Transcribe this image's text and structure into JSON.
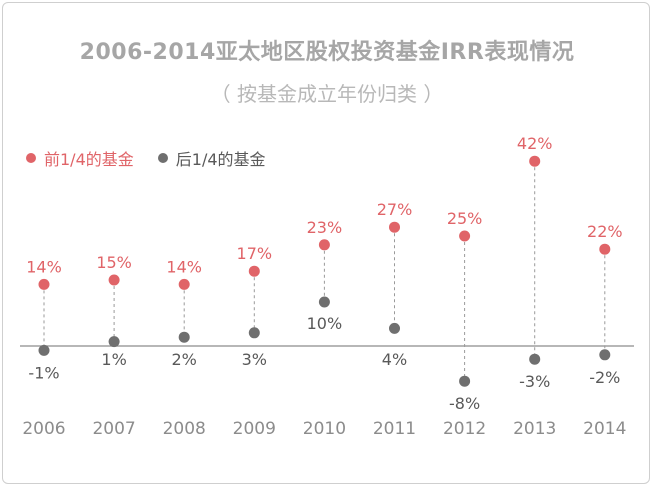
{
  "title": "2006-2014亚太地区股权投资基金IRR表现情况",
  "subtitle": "（ 按基金成立年份归类 ）",
  "colors": {
    "top_quartile": "#e06468",
    "bottom_quartile": "#6f6f6f",
    "connector": "#9a9a9a",
    "axis": "#8c8c8c",
    "tick_label": "#8c8c8c"
  },
  "legend": [
    {
      "label": "前1/4的基金",
      "color": "#e06468"
    },
    {
      "label": "后1/4的基金",
      "color": "#6f6f6f"
    }
  ],
  "chart_data": {
    "type": "scatter",
    "title": "2006-2014亚太地区股权投资基金IRR表现情况",
    "subtitle": "（ 按基金成立年份归类 ）",
    "categories": [
      "2006",
      "2007",
      "2008",
      "2009",
      "2010",
      "2011",
      "2012",
      "2013",
      "2014"
    ],
    "series": [
      {
        "name": "前1/4的基金",
        "values": [
          14,
          15,
          14,
          17,
          23,
          27,
          25,
          42,
          22
        ],
        "labels": [
          "14%",
          "15%",
          "14%",
          "17%",
          "23%",
          "27%",
          "25%",
          "42%",
          "22%"
        ]
      },
      {
        "name": "后1/4的基金",
        "values": [
          -1,
          1,
          2,
          3,
          10,
          4,
          -8,
          -3,
          -2
        ],
        "labels": [
          "-1%",
          "1%",
          "2%",
          "3%",
          "10%",
          "4%",
          "-8%",
          "-3%",
          "-2%"
        ]
      }
    ],
    "ylim": [
      -8,
      42
    ],
    "grid": false,
    "legend_position": "top-left",
    "connectors": "dashed vertical lines between each pair"
  }
}
